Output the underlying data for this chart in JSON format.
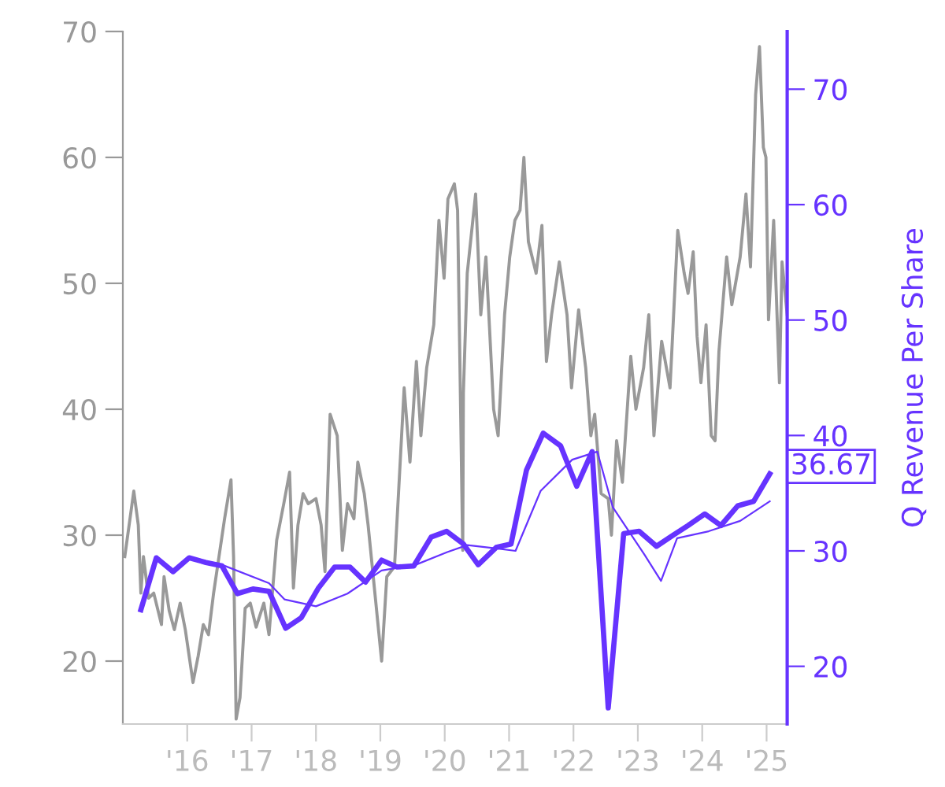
{
  "chart_data": {
    "type": "line",
    "y2label": "Q Revenue Per Share",
    "xlim": [
      2015,
      2025.32
    ],
    "ylim": [
      15,
      70
    ],
    "y2lim": [
      15,
      75
    ],
    "xticks": [
      {
        "value": 2016,
        "label": "'16"
      },
      {
        "value": 2017,
        "label": "'17"
      },
      {
        "value": 2018,
        "label": "'18"
      },
      {
        "value": 2019,
        "label": "'19"
      },
      {
        "value": 2020,
        "label": "'20"
      },
      {
        "value": 2021,
        "label": "'21"
      },
      {
        "value": 2022,
        "label": "'22"
      },
      {
        "value": 2023,
        "label": "'23"
      },
      {
        "value": 2024,
        "label": "'24"
      },
      {
        "value": 2025,
        "label": "'25"
      }
    ],
    "yticks": [
      20,
      30,
      40,
      50,
      60,
      70
    ],
    "y2ticks": [
      20,
      30,
      40,
      50,
      60,
      70
    ],
    "grid": false,
    "legend": false,
    "marker": "none",
    "line_style": "solid",
    "annotations": [
      "36.67"
    ],
    "series": [
      {
        "color": "#999999",
        "x": [
          2015.03,
          2015.17,
          2015.24,
          2015.28,
          2015.32,
          2015.4,
          2015.48,
          2015.6,
          2015.64,
          2015.72,
          2015.8,
          2015.89,
          2015.97,
          2016.09,
          2016.17,
          2016.25,
          2016.33,
          2016.41,
          2016.58,
          2016.68,
          2016.72,
          2016.76,
          2016.82,
          2016.9,
          2016.98,
          2017.07,
          2017.19,
          2017.27,
          2017.39,
          2017.5,
          2017.59,
          2017.65,
          2017.72,
          2017.8,
          2017.88,
          2018.0,
          2018.08,
          2018.14,
          2018.22,
          2018.33,
          2018.41,
          2018.49,
          2018.59,
          2018.65,
          2018.75,
          2018.81,
          2018.89,
          2019.02,
          2019.1,
          2019.22,
          2019.3,
          2019.37,
          2019.46,
          2019.56,
          2019.63,
          2019.72,
          2019.83,
          2019.91,
          2019.99,
          2020.05,
          2020.15,
          2020.2,
          2020.28,
          2020.29,
          2020.35,
          2020.48,
          2020.56,
          2020.64,
          2020.76,
          2020.83,
          2020.93,
          2021.01,
          2021.09,
          2021.17,
          2021.23,
          2021.3,
          2021.42,
          2021.51,
          2021.58,
          2021.66,
          2021.78,
          2021.9,
          2021.97,
          2022.08,
          2022.19,
          2022.27,
          2022.33,
          2022.43,
          2022.54,
          2022.59,
          2022.67,
          2022.76,
          2022.89,
          2022.97,
          2023.09,
          2023.17,
          2023.25,
          2023.37,
          2023.5,
          2023.62,
          2023.72,
          2023.78,
          2023.86,
          2023.92,
          2023.98,
          2024.06,
          2024.14,
          2024.2,
          2024.26,
          2024.38,
          2024.46,
          2024.59,
          2024.68,
          2024.75,
          2024.83,
          2024.89,
          2024.95,
          2024.99,
          2025.03,
          2025.11,
          2025.2,
          2025.24,
          2025.32
        ],
        "values": [
          28.3,
          33.5,
          30.8,
          25.4,
          28.3,
          25.0,
          25.4,
          22.9,
          26.7,
          24.0,
          22.5,
          24.6,
          22.5,
          18.3,
          20.4,
          22.9,
          22.1,
          25.4,
          31.3,
          34.4,
          28.3,
          15.4,
          17.1,
          24.2,
          24.6,
          22.7,
          24.6,
          22.1,
          29.6,
          32.5,
          35.0,
          25.8,
          30.8,
          33.3,
          32.5,
          32.9,
          30.8,
          27.1,
          39.6,
          37.9,
          28.8,
          32.5,
          31.3,
          35.8,
          33.3,
          30.8,
          26.7,
          20.0,
          26.7,
          27.5,
          35.0,
          41.7,
          35.8,
          43.8,
          37.9,
          43.3,
          46.7,
          55.0,
          50.4,
          56.7,
          57.9,
          55.8,
          28.8,
          41.3,
          50.8,
          57.1,
          47.5,
          52.1,
          40.0,
          37.9,
          47.5,
          52.1,
          55.0,
          55.8,
          60.0,
          53.3,
          50.8,
          54.6,
          43.8,
          47.5,
          51.7,
          47.5,
          41.7,
          47.9,
          43.3,
          37.9,
          39.6,
          33.3,
          32.9,
          30.0,
          37.5,
          34.2,
          44.2,
          40.0,
          43.3,
          47.5,
          37.9,
          45.4,
          41.7,
          54.2,
          50.8,
          49.2,
          52.5,
          45.8,
          42.1,
          46.7,
          37.9,
          37.5,
          44.6,
          52.1,
          48.3,
          52.1,
          57.1,
          51.3,
          65.0,
          68.8,
          60.8,
          60.0,
          47.1,
          55.0,
          42.1,
          51.7,
          47.5
        ]
      },
      {
        "color": "#6633ff",
        "axis": "y2",
        "x": [
          2015.28,
          2015.52,
          2015.78,
          2016.03,
          2016.29,
          2016.54,
          2016.78,
          2017.02,
          2017.27,
          2017.53,
          2017.77,
          2018.04,
          2018.29,
          2018.53,
          2018.77,
          2019.02,
          2019.26,
          2019.52,
          2019.79,
          2020.03,
          2020.29,
          2020.52,
          2020.8,
          2021.03,
          2021.27,
          2021.53,
          2021.8,
          2022.05,
          2022.29,
          2022.54,
          2022.78,
          2023.02,
          2023.29,
          2023.53,
          2023.78,
          2024.04,
          2024.29,
          2024.55,
          2024.8,
          2025.05
        ],
        "values": [
          24.9,
          29.4,
          28.2,
          29.4,
          29.0,
          28.7,
          26.3,
          26.7,
          26.5,
          23.3,
          24.2,
          26.8,
          28.6,
          28.6,
          27.3,
          29.2,
          28.6,
          28.7,
          31.2,
          31.7,
          30.6,
          28.8,
          30.3,
          30.6,
          37.0,
          40.2,
          39.1,
          35.6,
          38.6,
          16.4,
          31.5,
          31.7,
          30.4,
          31.3,
          32.2,
          33.2,
          32.2,
          33.9,
          34.3,
          36.67
        ]
      },
      {
        "color": "#6633ff",
        "axis": "y2",
        "x": [
          2016.03,
          2016.54,
          2017.27,
          2017.51,
          2018.0,
          2018.49,
          2019.02,
          2019.55,
          2020.04,
          2020.35,
          2020.83,
          2021.1,
          2021.49,
          2021.98,
          2022.37,
          2022.61,
          2023.1,
          2023.36,
          2023.61,
          2024.1,
          2024.59,
          2025.05
        ],
        "values": [
          29.4,
          28.8,
          27.2,
          25.8,
          25.2,
          26.3,
          28.3,
          28.8,
          29.9,
          30.5,
          30.2,
          30.0,
          35.2,
          37.9,
          38.6,
          33.8,
          29.7,
          27.4,
          31.1,
          31.7,
          32.6,
          34.3
        ]
      }
    ]
  }
}
